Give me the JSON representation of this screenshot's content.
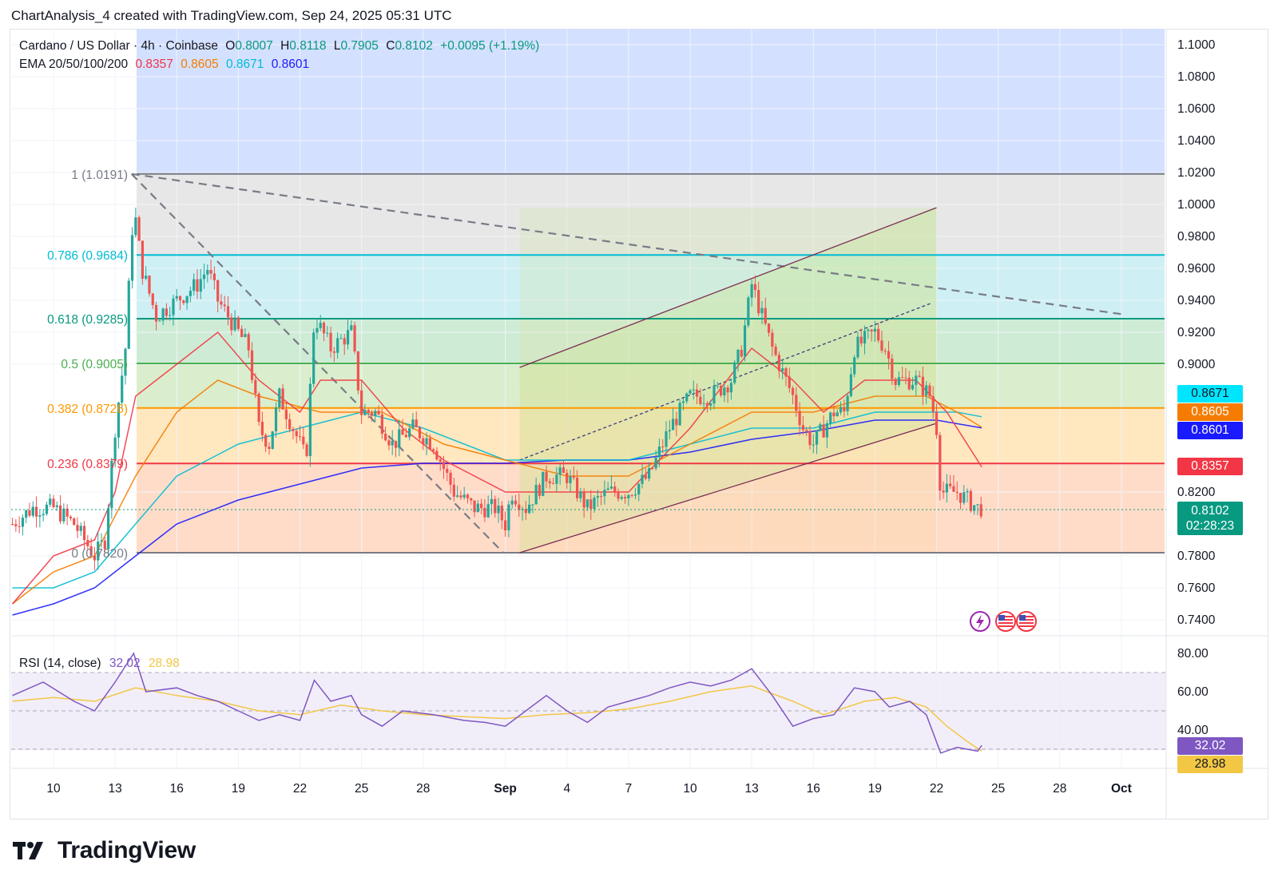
{
  "header": {
    "text": "ChartAnalysis_4 created with TradingView.com, Sep 24, 2025 05:31 UTC"
  },
  "legend": {
    "symbol": "Cardano / US Dollar · 4h · Coinbase",
    "open_label": "O",
    "open": "0.8007",
    "high_label": "H",
    "high": "0.8118",
    "low_label": "L",
    "low": "0.7905",
    "close_label": "C",
    "close": "0.8102",
    "change": "+0.0095 (+1.19%)",
    "ema_label": "EMA 20/50/100/200",
    "ema_values": [
      "0.8357",
      "0.8605",
      "0.8671",
      "0.8601"
    ]
  },
  "rsi_legend": {
    "label": "RSI (14, close)",
    "rsi": "32.02",
    "ma": "28.98"
  },
  "badges": {
    "ema100": "0.8671",
    "ema50": "0.8605",
    "ema200": "0.8601",
    "ema20": "0.8357",
    "price": "0.8102",
    "countdown": "02:28:23",
    "rsi": "32.02",
    "rsi_ma": "28.98"
  },
  "colors": {
    "up": "#26a69a",
    "down": "#ef5350",
    "ema20": "#f23645",
    "ema50": "#f57c00",
    "ema100": "#00bcd4",
    "ema200": "#1a1aff",
    "rsi": "#7e57c2",
    "rsi_ma": "#f2c744"
  },
  "icons": [
    "lightning-event-icon",
    "us-flag-icon",
    "us-flag-icon"
  ],
  "brand": "TradingView",
  "chart_data": {
    "type": "candlestick",
    "price_axis": {
      "min": 0.73,
      "max": 1.11,
      "ticks": [
        "1.1000",
        "1.0800",
        "1.0600",
        "1.0400",
        "1.0200",
        "1.0000",
        "0.9800",
        "0.9600",
        "0.9400",
        "0.9200",
        "0.9000",
        "0.8200",
        "0.7800",
        "0.7600",
        "0.7400"
      ]
    },
    "time_axis": {
      "ticks": [
        {
          "label": "10",
          "day": 10
        },
        {
          "label": "13",
          "day": 13
        },
        {
          "label": "16",
          "day": 16
        },
        {
          "label": "19",
          "day": 19
        },
        {
          "label": "22",
          "day": 22
        },
        {
          "label": "25",
          "day": 25
        },
        {
          "label": "28",
          "day": 28
        },
        {
          "label": "Sep",
          "day": 32
        },
        {
          "label": "4",
          "day": 35
        },
        {
          "label": "7",
          "day": 38
        },
        {
          "label": "10",
          "day": 41
        },
        {
          "label": "13",
          "day": 44
        },
        {
          "label": "16",
          "day": 47
        },
        {
          "label": "19",
          "day": 50
        },
        {
          "label": "22",
          "day": 53
        },
        {
          "label": "25",
          "day": 56
        },
        {
          "label": "28",
          "day": 59
        },
        {
          "label": "Oct",
          "day": 62
        }
      ]
    },
    "fib_levels": [
      {
        "label": "1 (1.0191)",
        "price": 1.0191,
        "color": "#787b86"
      },
      {
        "label": "0.786 (0.9684)",
        "price": 0.9684,
        "color": "#00bcd4"
      },
      {
        "label": "0.618 (0.9285)",
        "price": 0.9285,
        "color": "#089981"
      },
      {
        "label": "0.5 (0.9005)",
        "price": 0.9005,
        "color": "#4caf50"
      },
      {
        "label": "0.382 (0.8726)",
        "price": 0.8726,
        "color": "#ff9800"
      },
      {
        "label": "0.236 (0.8379)",
        "price": 0.8379,
        "color": "#f23645"
      },
      {
        "label": "0 (0.7820)",
        "price": 0.782,
        "color": "#787b86"
      }
    ],
    "price_path": [
      [
        8.0,
        0.8
      ],
      [
        9.0,
        0.81
      ],
      [
        10.0,
        0.81
      ],
      [
        11.0,
        0.8
      ],
      [
        12.0,
        0.78
      ],
      [
        12.5,
        0.79
      ],
      [
        13.0,
        0.86
      ],
      [
        13.5,
        0.91
      ],
      [
        13.9,
        1.0
      ],
      [
        14.3,
        0.96
      ],
      [
        15.0,
        0.93
      ],
      [
        16.0,
        0.94
      ],
      [
        17.0,
        0.95
      ],
      [
        17.5,
        0.96
      ],
      [
        18.0,
        0.94
      ],
      [
        19.0,
        0.92
      ],
      [
        19.5,
        0.91
      ],
      [
        20.0,
        0.86
      ],
      [
        20.5,
        0.85
      ],
      [
        21.0,
        0.88
      ],
      [
        22.0,
        0.85
      ],
      [
        22.3,
        0.84
      ],
      [
        22.7,
        0.93
      ],
      [
        23.5,
        0.91
      ],
      [
        24.5,
        0.92
      ],
      [
        25.0,
        0.87
      ],
      [
        25.7,
        0.87
      ],
      [
        26.5,
        0.85
      ],
      [
        27.5,
        0.86
      ],
      [
        28.5,
        0.85
      ],
      [
        29.5,
        0.82
      ],
      [
        30.5,
        0.81
      ],
      [
        31.5,
        0.81
      ],
      [
        32.0,
        0.8
      ],
      [
        32.3,
        0.82
      ],
      [
        33.0,
        0.81
      ],
      [
        34.0,
        0.83
      ],
      [
        35.0,
        0.83
      ],
      [
        36.0,
        0.81
      ],
      [
        37.0,
        0.82
      ],
      [
        38.0,
        0.82
      ],
      [
        39.0,
        0.83
      ],
      [
        40.0,
        0.86
      ],
      [
        41.0,
        0.88
      ],
      [
        42.0,
        0.88
      ],
      [
        43.0,
        0.89
      ],
      [
        43.5,
        0.91
      ],
      [
        44.0,
        0.95
      ],
      [
        44.5,
        0.93
      ],
      [
        45.0,
        0.91
      ],
      [
        46.0,
        0.88
      ],
      [
        46.5,
        0.86
      ],
      [
        47.0,
        0.85
      ],
      [
        48.0,
        0.87
      ],
      [
        48.5,
        0.87
      ],
      [
        49.0,
        0.91
      ],
      [
        50.0,
        0.92
      ],
      [
        50.5,
        0.91
      ],
      [
        51.0,
        0.89
      ],
      [
        52.0,
        0.89
      ],
      [
        52.7,
        0.88
      ],
      [
        53.0,
        0.86
      ],
      [
        53.2,
        0.82
      ],
      [
        54.0,
        0.82
      ],
      [
        55.0,
        0.81
      ],
      [
        55.2,
        0.8102
      ]
    ],
    "ema20": [
      [
        8.0,
        0.75
      ],
      [
        10.0,
        0.78
      ],
      [
        12.0,
        0.79
      ],
      [
        13.0,
        0.82
      ],
      [
        14.0,
        0.88
      ],
      [
        16.0,
        0.9
      ],
      [
        18.0,
        0.92
      ],
      [
        20.0,
        0.89
      ],
      [
        22.0,
        0.87
      ],
      [
        23.0,
        0.89
      ],
      [
        25.0,
        0.89
      ],
      [
        27.0,
        0.86
      ],
      [
        29.0,
        0.84
      ],
      [
        32.0,
        0.82
      ],
      [
        35.0,
        0.82
      ],
      [
        38.0,
        0.82
      ],
      [
        41.0,
        0.86
      ],
      [
        44.0,
        0.91
      ],
      [
        46.0,
        0.89
      ],
      [
        47.5,
        0.87
      ],
      [
        49.5,
        0.89
      ],
      [
        52.0,
        0.89
      ],
      [
        53.5,
        0.87
      ],
      [
        55.2,
        0.8357
      ]
    ],
    "ema50": [
      [
        8.0,
        0.75
      ],
      [
        10.0,
        0.77
      ],
      [
        12.0,
        0.78
      ],
      [
        14.0,
        0.83
      ],
      [
        16.0,
        0.87
      ],
      [
        18.0,
        0.89
      ],
      [
        20.0,
        0.88
      ],
      [
        23.0,
        0.87
      ],
      [
        26.0,
        0.87
      ],
      [
        29.0,
        0.85
      ],
      [
        32.0,
        0.84
      ],
      [
        35.0,
        0.83
      ],
      [
        38.0,
        0.83
      ],
      [
        41.0,
        0.85
      ],
      [
        44.0,
        0.87
      ],
      [
        47.0,
        0.87
      ],
      [
        50.0,
        0.88
      ],
      [
        52.5,
        0.88
      ],
      [
        54.0,
        0.87
      ],
      [
        55.2,
        0.8605
      ]
    ],
    "ema100": [
      [
        8.0,
        0.76
      ],
      [
        10.0,
        0.76
      ],
      [
        12.0,
        0.77
      ],
      [
        14.0,
        0.8
      ],
      [
        16.0,
        0.83
      ],
      [
        19.0,
        0.85
      ],
      [
        22.0,
        0.86
      ],
      [
        25.0,
        0.87
      ],
      [
        28.0,
        0.86
      ],
      [
        32.0,
        0.84
      ],
      [
        35.0,
        0.84
      ],
      [
        38.0,
        0.84
      ],
      [
        41.0,
        0.85
      ],
      [
        44.0,
        0.86
      ],
      [
        47.0,
        0.86
      ],
      [
        50.0,
        0.87
      ],
      [
        52.0,
        0.87
      ],
      [
        54.0,
        0.87
      ],
      [
        55.2,
        0.8671
      ]
    ],
    "ema200": [
      [
        8.0,
        0.74
      ],
      [
        10.0,
        0.75
      ],
      [
        12.0,
        0.76
      ],
      [
        14.0,
        0.78
      ],
      [
        16.0,
        0.8
      ],
      [
        19.0,
        0.815
      ],
      [
        22.0,
        0.825
      ],
      [
        25.0,
        0.835
      ],
      [
        28.0,
        0.838
      ],
      [
        32.0,
        0.838
      ],
      [
        35.0,
        0.84
      ],
      [
        38.0,
        0.84
      ],
      [
        41.0,
        0.845
      ],
      [
        44.0,
        0.853
      ],
      [
        47.0,
        0.858
      ],
      [
        50.0,
        0.865
      ],
      [
        53.0,
        0.865
      ],
      [
        55.2,
        0.8601
      ]
    ],
    "rsi_axis": {
      "min": 20,
      "max": 85,
      "ticks": [
        "80.00",
        "60.00",
        "40.00"
      ]
    },
    "rsi": [
      [
        8.0,
        58
      ],
      [
        9.5,
        65
      ],
      [
        11.0,
        55
      ],
      [
        12.0,
        50
      ],
      [
        13.0,
        65
      ],
      [
        13.9,
        80
      ],
      [
        14.5,
        60
      ],
      [
        16.0,
        62
      ],
      [
        17.0,
        58
      ],
      [
        18.0,
        55
      ],
      [
        19.0,
        50
      ],
      [
        20.0,
        45
      ],
      [
        21.0,
        48
      ],
      [
        22.0,
        45
      ],
      [
        22.7,
        66
      ],
      [
        23.5,
        55
      ],
      [
        24.5,
        58
      ],
      [
        25.0,
        48
      ],
      [
        26.0,
        42
      ],
      [
        27.0,
        50
      ],
      [
        28.5,
        48
      ],
      [
        30.0,
        45
      ],
      [
        31.0,
        44
      ],
      [
        32.0,
        42
      ],
      [
        33.0,
        50
      ],
      [
        34.0,
        58
      ],
      [
        35.0,
        50
      ],
      [
        36.0,
        44
      ],
      [
        37.0,
        52
      ],
      [
        38.0,
        55
      ],
      [
        39.0,
        58
      ],
      [
        40.0,
        62
      ],
      [
        41.0,
        65
      ],
      [
        42.0,
        63
      ],
      [
        43.0,
        66
      ],
      [
        44.0,
        72
      ],
      [
        45.0,
        58
      ],
      [
        46.0,
        42
      ],
      [
        47.0,
        46
      ],
      [
        48.0,
        48
      ],
      [
        49.0,
        62
      ],
      [
        50.0,
        60
      ],
      [
        50.7,
        52
      ],
      [
        51.7,
        55
      ],
      [
        52.5,
        48
      ],
      [
        53.2,
        28
      ],
      [
        54.0,
        31
      ],
      [
        55.0,
        29
      ],
      [
        55.2,
        32.02
      ]
    ],
    "rsi_ma": [
      [
        8.0,
        55
      ],
      [
        10.0,
        57
      ],
      [
        12.0,
        55
      ],
      [
        14.0,
        62
      ],
      [
        16.0,
        58
      ],
      [
        18.0,
        55
      ],
      [
        20.0,
        50
      ],
      [
        22.0,
        48
      ],
      [
        24.0,
        53
      ],
      [
        26.0,
        50
      ],
      [
        28.0,
        48
      ],
      [
        30.0,
        47
      ],
      [
        32.0,
        46
      ],
      [
        34.0,
        48
      ],
      [
        36.0,
        49
      ],
      [
        38.0,
        51
      ],
      [
        40.0,
        55
      ],
      [
        42.0,
        60
      ],
      [
        44.0,
        63
      ],
      [
        46.0,
        55
      ],
      [
        47.5,
        48
      ],
      [
        49.5,
        55
      ],
      [
        51.0,
        57
      ],
      [
        52.5,
        52
      ],
      [
        53.5,
        42
      ],
      [
        54.5,
        34
      ],
      [
        55.2,
        28.98
      ]
    ],
    "trendlines": [
      {
        "name": "descending-trendline",
        "from": [
          13.8,
          1.0191
        ],
        "to": [
          62.2,
          0.931
        ],
        "style": "dashed"
      },
      {
        "name": "steep-descending-trendline",
        "from": [
          13.8,
          1.0191
        ],
        "to": [
          31.9,
          0.782
        ],
        "style": "dashed"
      },
      {
        "name": "channel-upper-line",
        "from": [
          32.7,
          0.898
        ],
        "to": [
          53.0,
          0.998
        ],
        "style": "solid"
      },
      {
        "name": "channel-lower-line",
        "from": [
          32.7,
          0.782
        ],
        "to": [
          53.0,
          0.863
        ],
        "style": "solid"
      },
      {
        "name": "channel-mid-line",
        "from": [
          32.7,
          0.84
        ],
        "to": [
          52.7,
          0.938
        ],
        "style": "dashed"
      }
    ]
  }
}
